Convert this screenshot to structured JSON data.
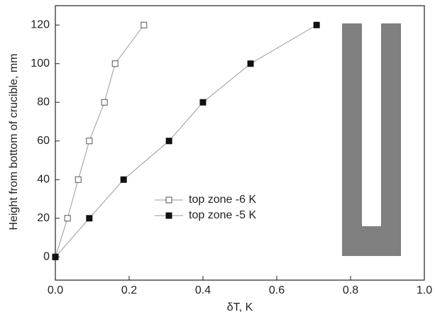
{
  "chart_data": {
    "type": "line",
    "x_label": "δT, K",
    "y_label": "Height from bottom of crucible, mm",
    "xlim": [
      0,
      1
    ],
    "ylim": [
      -12,
      130
    ],
    "xticks": [
      {
        "value": 0,
        "label": "0.0"
      },
      0.2,
      0.4,
      0.6,
      0.8,
      {
        "value": 1,
        "label": "1.0"
      }
    ],
    "yticks": [
      0,
      20,
      40,
      60,
      80,
      100,
      120
    ],
    "series": [
      {
        "name": "top zone -6 K",
        "color": "#555555",
        "marker": "open-square",
        "x": [
          0,
          0.033,
          0.062,
          0.092,
          0.133,
          0.162,
          0.24
        ],
        "values": [
          0,
          20,
          40,
          60,
          80,
          100,
          120
        ]
      },
      {
        "name": "top zone -5 K",
        "color": "#111111",
        "marker": "filled-square",
        "x": [
          0,
          0.092,
          0.185,
          0.308,
          0.4,
          0.529,
          0.708
        ],
        "values": [
          0,
          20,
          40,
          60,
          80,
          100,
          120
        ]
      }
    ]
  }
}
